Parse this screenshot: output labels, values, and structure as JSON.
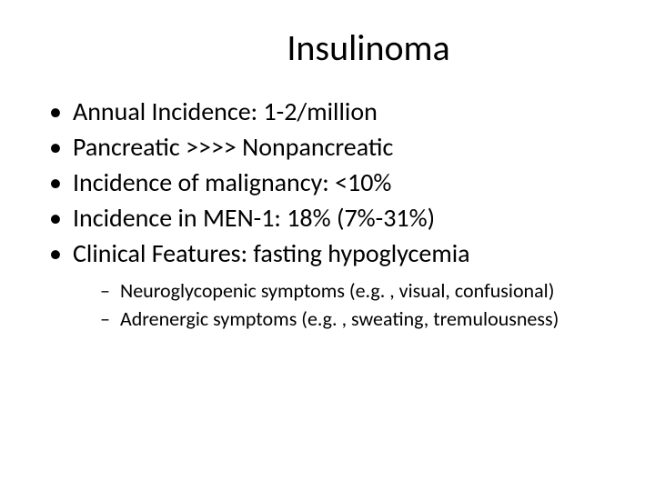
{
  "slide": {
    "background_color": "#ffffff",
    "text_color": "#000000",
    "font_family": "Calibri",
    "title": {
      "text": "Insulinoma",
      "fontsize": 40,
      "align": "center"
    },
    "bullets": {
      "level1_fontsize": 28,
      "level2_fontsize": 22,
      "level1_marker": "•",
      "level2_marker": "–",
      "items": [
        {
          "text": "Annual Incidence: 1-2/million"
        },
        {
          "text": "Pancreatic >>>> Nonpancreatic"
        },
        {
          "text": "Incidence of malignancy: <10%"
        },
        {
          "text": "Incidence in MEN-1: 18% (7%-31%)"
        },
        {
          "text": "Clinical Features: fasting hypoglycemia",
          "sub": [
            {
              "text": "Neuroglycopenic symptoms (e.g. , visual, confusional)"
            },
            {
              "text": "Adrenergic symptoms (e.g. , sweating, tremulousness)"
            }
          ]
        }
      ]
    }
  }
}
